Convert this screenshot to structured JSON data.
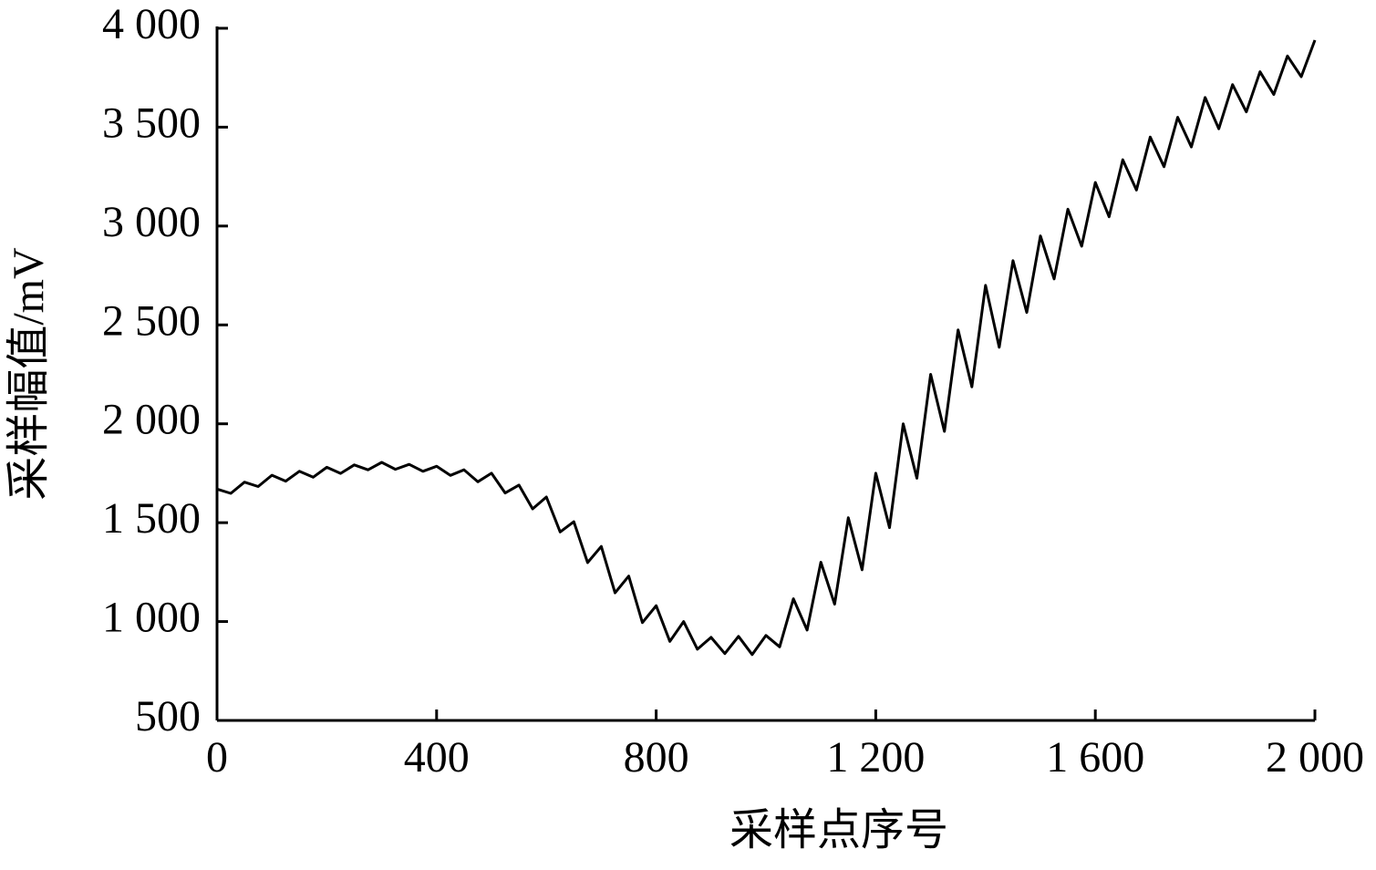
{
  "chart_data": {
    "type": "line",
    "xlabel": "采样点序号",
    "ylabel": "采样幅值/mV",
    "color": "#000000",
    "x": [
      0,
      25,
      50,
      75,
      100,
      125,
      150,
      175,
      200,
      225,
      250,
      275,
      300,
      325,
      350,
      375,
      400,
      425,
      450,
      475,
      500,
      525,
      550,
      575,
      600,
      625,
      650,
      675,
      700,
      725,
      750,
      775,
      800,
      825,
      850,
      875,
      900,
      925,
      950,
      975,
      1000,
      1025,
      1050,
      1075,
      1100,
      1125,
      1150,
      1175,
      1200,
      1225,
      1250,
      1275,
      1300,
      1325,
      1350,
      1375,
      1400,
      1425,
      1450,
      1475,
      1500,
      1525,
      1550,
      1575,
      1600,
      1625,
      1650,
      1675,
      1700,
      1725,
      1750,
      1775,
      1800,
      1825,
      1850,
      1875,
      1900,
      1925,
      1950,
      1975,
      2000
    ],
    "values": [
      1670,
      1648,
      1705,
      1683,
      1740,
      1710,
      1760,
      1730,
      1780,
      1749,
      1792,
      1767,
      1805,
      1770,
      1795,
      1760,
      1785,
      1739,
      1767,
      1707,
      1750,
      1650,
      1690,
      1570,
      1630,
      1453,
      1505,
      1298,
      1380,
      1145,
      1230,
      995,
      1080,
      900,
      1000,
      860,
      920,
      838,
      925,
      833,
      930,
      872,
      1115,
      957,
      1300,
      1088,
      1525,
      1262,
      1750,
      1475,
      2000,
      1725,
      2250,
      1962,
      2475,
      2187,
      2700,
      2387,
      2825,
      2563,
      2950,
      2733,
      3085,
      2898,
      3220,
      3047,
      3335,
      3182,
      3450,
      3300,
      3550,
      3400,
      3650,
      3492,
      3715,
      3577,
      3780,
      3665,
      3860,
      3755,
      3940
    ],
    "xlim": [
      0,
      2000
    ],
    "xticks": [
      0,
      400,
      800,
      {
        "value": 1200,
        "label": "1 200"
      },
      {
        "value": 1600,
        "label": "1 600"
      },
      {
        "value": 2000,
        "label": "2 000"
      }
    ],
    "ylim": [
      500,
      4000
    ],
    "yticks": [
      500,
      {
        "value": 1000,
        "label": "1 000"
      },
      {
        "value": 1500,
        "label": "1 500"
      },
      {
        "value": 2000,
        "label": "2 000"
      },
      {
        "value": 2500,
        "label": "2 500"
      },
      {
        "value": 3000,
        "label": "3 000"
      },
      {
        "value": 3500,
        "label": "3 500"
      },
      {
        "value": 4000,
        "label": "4 000"
      }
    ],
    "grid": false
  }
}
